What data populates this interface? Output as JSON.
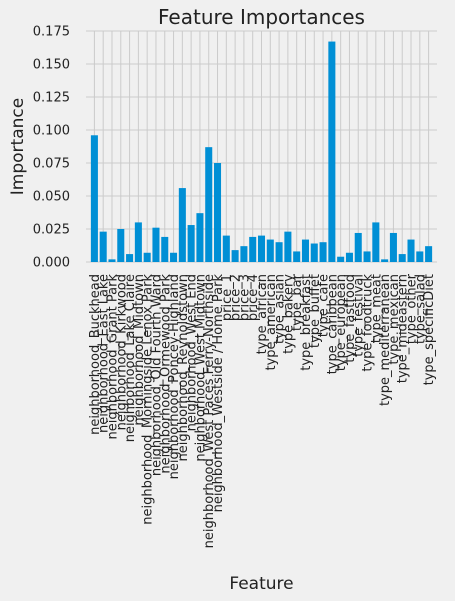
{
  "chart_data": {
    "type": "bar",
    "title": "Feature Importances",
    "xlabel": "Feature",
    "ylabel": "Importance",
    "ylim": [
      0,
      0.175
    ],
    "yticks": [
      "0.000",
      "0.025",
      "0.050",
      "0.075",
      "0.100",
      "0.125",
      "0.150",
      "0.175"
    ],
    "grid": true,
    "bar_color": "#008fd5",
    "categories": [
      "neighborhood_Buckhead",
      "neighborhood_East Lake",
      "neighborhood_Grant Park",
      "neighborhood_Kirkwood",
      "neighborhood_Lake Claire",
      "neighborhood_Midtown",
      "neighborhood_Morningside Lenox Park",
      "neighborhood_Old Fourth Ward",
      "neighborhood_Ormewood Park",
      "neighborhood_Poncey-Highland",
      "neighborhood_Reynoldstown",
      "neighborhood_West End",
      "neighborhood_West Midtown",
      "neighborhood_West Paces Ferry-Northside",
      "neighborhood_Westside / Home Park",
      "price_1",
      "price_2",
      "price_3",
      "price_4",
      "type_african",
      "type_american",
      "type_asian",
      "type_bakery",
      "type_bar",
      "type_breakfast",
      "type_buffet",
      "type_cafe",
      "type_caribbean",
      "type_european",
      "type_fastfood",
      "type_festival",
      "type_foodtruck",
      "type_meat",
      "type_mediterranean",
      "type_mexican",
      "type_mideastern",
      "type_other",
      "type_salad",
      "type_specificDiet"
    ],
    "tick_labels": [
      "neighborhood_Buckhead",
      "neighborhood_East Lake",
      "neighborhood_Grant Park",
      "neighborhood_Kirkwood",
      "neighborhood_Lake Claire",
      "neighborhood_Midtown",
      "neighborhood_Morningside Lenox Park",
      "neighborhood_Old Fourth Ward",
      "neighborhood_Ormewood Park",
      "neighborhood_Poncey-Highland",
      "neighborhood_Reynoldstown",
      "neighborhood_West End",
      "neighborhood_West Midtown",
      "neighborhood_West Paces Ferry-Northside",
      "neighborhood_Westside / Home Park",
      "price_1",
      "price_2",
      "price_3",
      "price_4",
      "type_african",
      "type_american",
      "type_asian",
      "type_bakery",
      "type_bar",
      "type_breakfast",
      "type_buffet",
      "type_cafe",
      "type_caribbean",
      "type_european",
      "type_fastfood",
      "type_festival",
      "type_foodtruck",
      "type_meat",
      "type_mediterranean",
      "type_mexican",
      "type_mideastern",
      "type_other",
      "type_salad",
      "type_specificDiet"
    ],
    "values": [
      0.096,
      0.023,
      0.002,
      0.025,
      0.006,
      0.03,
      0.007,
      0.026,
      0.019,
      0.007,
      0.056,
      0.028,
      0.037,
      0.087,
      0.075,
      0.02,
      0.009,
      0.012,
      0.019,
      0.02,
      0.017,
      0.015,
      0.023,
      0.008,
      0.017,
      0.014,
      0.015,
      0.167,
      0.004,
      0.007,
      0.022,
      0.008,
      0.03,
      0.002,
      0.022,
      0.006,
      0.017,
      0.008,
      0.012
    ]
  }
}
